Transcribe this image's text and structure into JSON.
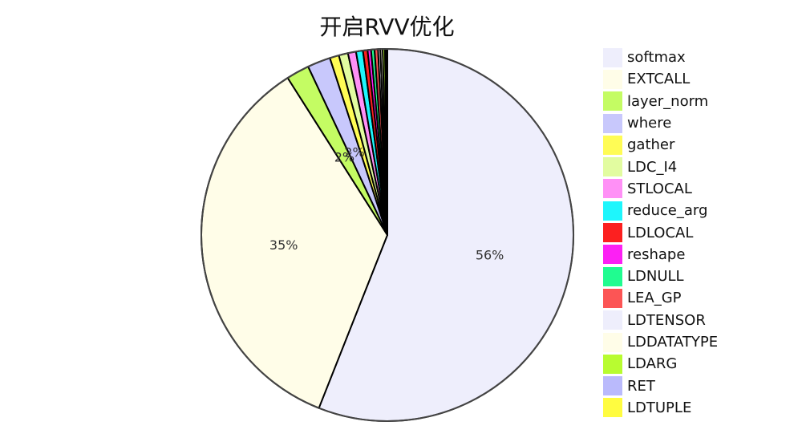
{
  "chart_data": {
    "type": "pie",
    "title": "开启RVV优化",
    "legend_position": "right",
    "slices": [
      {
        "label": "softmax",
        "value": 56,
        "color": "#eeeefc",
        "data_label": "56%"
      },
      {
        "label": "EXTCALL",
        "value": 35,
        "color": "#fffde8",
        "data_label": "35%"
      },
      {
        "label": "layer_norm",
        "value": 2,
        "color": "#c4fc63",
        "data_label": "2%"
      },
      {
        "label": "where",
        "value": 2,
        "color": "#c8c8fc",
        "data_label": "2%"
      },
      {
        "label": "gather",
        "value": 0.8,
        "color": "#fffc55",
        "data_label": ""
      },
      {
        "label": "LDC_I4",
        "value": 0.8,
        "color": "#e2fca0",
        "data_label": ""
      },
      {
        "label": "STLOCAL",
        "value": 0.7,
        "color": "#ff90f6",
        "data_label": ""
      },
      {
        "label": "reduce_arg",
        "value": 0.6,
        "color": "#1ef6fc",
        "data_label": ""
      },
      {
        "label": "LDLOCAL",
        "value": 0.4,
        "color": "#fc2020",
        "data_label": ""
      },
      {
        "label": "reshape",
        "value": 0.3,
        "color": "#fc20f4",
        "data_label": ""
      },
      {
        "label": "LDNULL",
        "value": 0.3,
        "color": "#20fc90",
        "data_label": ""
      },
      {
        "label": "LEA_GP",
        "value": 0.3,
        "color": "#fc5555",
        "data_label": ""
      },
      {
        "label": "LDTENSOR",
        "value": 0.2,
        "color": "#eeeefc",
        "data_label": ""
      },
      {
        "label": "LDDATATYPE",
        "value": 0.2,
        "color": "#fffde8",
        "data_label": ""
      },
      {
        "label": "LDARG",
        "value": 0.2,
        "color": "#b8fc30",
        "data_label": ""
      },
      {
        "label": "RET",
        "value": 0.1,
        "color": "#babafc",
        "data_label": ""
      },
      {
        "label": "LDTUPLE",
        "value": 0.1,
        "color": "#fffc40",
        "data_label": ""
      }
    ]
  }
}
